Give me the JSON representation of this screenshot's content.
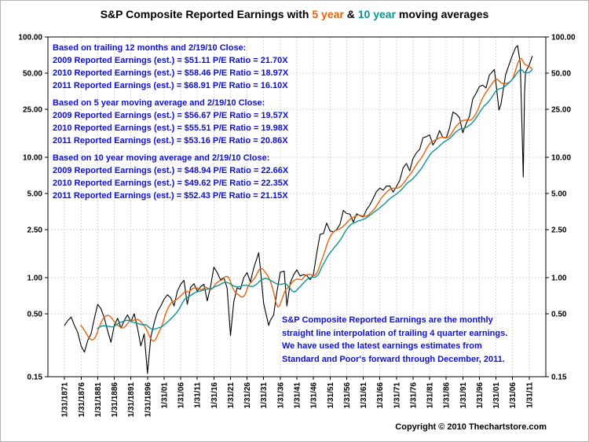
{
  "title": {
    "prefix": "S&P Composite Reported Earnings with ",
    "five_year": "5 year",
    "amp": " & ",
    "ten_year": "10 year",
    "suffix": " moving averages"
  },
  "colors": {
    "earnings": "#000000",
    "ma5": "#e8620d",
    "ma10": "#0d9494",
    "annotation_blue": "#0f10d0",
    "grid": "#c9c9c9",
    "axis": "#000000"
  },
  "annotations": {
    "trailing": {
      "header": "Based on trailing 12 months and 2/19/10 Close:",
      "lines": [
        "2009 Reported Earnings (est.) = $51.11 P/E Ratio = 21.70X",
        "2010 Reported Earnings (est.) = $58.46 P/E Ratio = 18.97X",
        "2011 Reported Earnings (est.) = $68.91 P/E Ratio = 16.10X"
      ]
    },
    "ma5": {
      "header": "Based on 5 year moving average and 2/19/10 Close:",
      "lines": [
        "2009 Reported Earnings (est.) = $56.67 P/E Ratio = 19.57X",
        "2010 Reported Earnings (est.) = $55.51 P/E Ratio = 19.98X",
        "2011 Reported Earnings (est.) = $53.16 P/E Ratio = 20.86X"
      ]
    },
    "ma10": {
      "header": "Based on 10 year moving average and 2/19/10 Close:",
      "lines": [
        "2009 Reported Earnings (est.) = $48.94 P/E Ratio = 22.66X",
        "2010 Reported Earnings (est.) = $49.62 P/E Ratio = 22.35X",
        "2011 Reported Earnings (est.) = $52.43 P/E Ratio = 21.15X"
      ]
    },
    "note": {
      "lines": [
        "S&P Composite Reported Earnings are the monthly",
        "straight line interpolation of trailing 4 quarter earnings.",
        "We have used the latest earnings estimates from",
        "Standard and Poor's forward through December, 2011."
      ]
    }
  },
  "copyright": "Copyright © 2010 Thechartstore.com",
  "chart_data": {
    "type": "line",
    "yscale": "log",
    "ylim": [
      0.15,
      100
    ],
    "xlim_years": [
      1866,
      2016
    ],
    "grid": true,
    "legend": "in-title",
    "y_ticks": [
      100,
      50,
      25,
      10,
      5,
      2.5,
      1,
      0.5,
      0.15
    ],
    "y_tick_labels": [
      "100.00",
      "50.00",
      "25.00",
      "10.00",
      "5.00",
      "2.50",
      "1.00",
      "0.50",
      "0.15"
    ],
    "x_tick_years": [
      1871,
      1876,
      1881,
      1886,
      1891,
      1896,
      1901,
      1906,
      1911,
      1916,
      1921,
      1926,
      1931,
      1936,
      1941,
      1946,
      1951,
      1956,
      1961,
      1966,
      1971,
      1976,
      1981,
      1986,
      1991,
      1996,
      2001,
      2006,
      2011
    ],
    "x_tick_labels": [
      "1/31/1871",
      "1/31/1876",
      "1/31/1881",
      "1/31/1886",
      "1/31/1891",
      "1/31/1896",
      "1/31/01",
      "1/31/06",
      "1/31/11",
      "1/31/16",
      "1/31/21",
      "1/31/26",
      "1/31/31",
      "1/31/36",
      "1/31/41",
      "1/31/46",
      "1/31/51",
      "1/31/56",
      "1/31/61",
      "1/31/66",
      "1/31/71",
      "1/31/76",
      "1/31/81",
      "1/31/86",
      "1/31/91",
      "1/31/96",
      "1/31/01",
      "1/31/06",
      "1/31/11"
    ],
    "series": [
      {
        "name": "S&P Composite Reported Earnings",
        "color_key": "earnings",
        "points": [
          [
            1871,
            0.4
          ],
          [
            1872,
            0.44
          ],
          [
            1873,
            0.47
          ],
          [
            1874,
            0.4
          ],
          [
            1875,
            0.35
          ],
          [
            1876,
            0.27
          ],
          [
            1877,
            0.24
          ],
          [
            1878,
            0.3
          ],
          [
            1879,
            0.34
          ],
          [
            1880,
            0.46
          ],
          [
            1881,
            0.6
          ],
          [
            1882,
            0.55
          ],
          [
            1883,
            0.46
          ],
          [
            1884,
            0.36
          ],
          [
            1885,
            0.29
          ],
          [
            1886,
            0.4
          ],
          [
            1887,
            0.46
          ],
          [
            1888,
            0.38
          ],
          [
            1889,
            0.44
          ],
          [
            1890,
            0.49
          ],
          [
            1891,
            0.43
          ],
          [
            1892,
            0.5
          ],
          [
            1893,
            0.38
          ],
          [
            1894,
            0.27
          ],
          [
            1895,
            0.34
          ],
          [
            1896,
            0.16
          ],
          [
            1897,
            0.32
          ],
          [
            1898,
            0.42
          ],
          [
            1899,
            0.52
          ],
          [
            1900,
            0.58
          ],
          [
            1901,
            0.66
          ],
          [
            1902,
            0.72
          ],
          [
            1903,
            0.68
          ],
          [
            1904,
            0.58
          ],
          [
            1905,
            0.77
          ],
          [
            1906,
            0.88
          ],
          [
            1907,
            0.95
          ],
          [
            1908,
            0.6
          ],
          [
            1909,
            0.83
          ],
          [
            1910,
            0.89
          ],
          [
            1911,
            0.77
          ],
          [
            1912,
            0.84
          ],
          [
            1913,
            0.88
          ],
          [
            1914,
            0.64
          ],
          [
            1915,
            0.84
          ],
          [
            1916,
            1.22
          ],
          [
            1917,
            1.1
          ],
          [
            1918,
            0.96
          ],
          [
            1919,
            1.0
          ],
          [
            1920,
            0.82
          ],
          [
            1921,
            0.33
          ],
          [
            1922,
            0.63
          ],
          [
            1923,
            0.82
          ],
          [
            1924,
            0.8
          ],
          [
            1925,
            1.0
          ],
          [
            1926,
            1.1
          ],
          [
            1927,
            0.92
          ],
          [
            1928,
            1.2
          ],
          [
            1929.5,
            1.61
          ],
          [
            1930,
            1.2
          ],
          [
            1931,
            0.61
          ],
          [
            1932.5,
            0.4
          ],
          [
            1933,
            0.44
          ],
          [
            1934,
            0.49
          ],
          [
            1935,
            0.76
          ],
          [
            1936,
            1.11
          ],
          [
            1937.2,
            1.13
          ],
          [
            1938,
            0.58
          ],
          [
            1939,
            0.9
          ],
          [
            1940,
            1.05
          ],
          [
            1941,
            1.16
          ],
          [
            1942,
            1.03
          ],
          [
            1943,
            1.06
          ],
          [
            1944,
            1.04
          ],
          [
            1945,
            0.96
          ],
          [
            1946,
            1.06
          ],
          [
            1947,
            1.61
          ],
          [
            1948,
            2.29
          ],
          [
            1949,
            2.32
          ],
          [
            1950,
            2.84
          ],
          [
            1951,
            2.44
          ],
          [
            1952,
            2.4
          ],
          [
            1953,
            2.51
          ],
          [
            1954,
            2.77
          ],
          [
            1955,
            3.62
          ],
          [
            1956,
            3.41
          ],
          [
            1957,
            3.37
          ],
          [
            1958,
            2.89
          ],
          [
            1959,
            3.39
          ],
          [
            1960,
            3.27
          ],
          [
            1961,
            3.19
          ],
          [
            1962,
            3.67
          ],
          [
            1963,
            4.02
          ],
          [
            1964,
            4.55
          ],
          [
            1965,
            5.19
          ],
          [
            1966,
            5.55
          ],
          [
            1967,
            5.33
          ],
          [
            1968,
            5.76
          ],
          [
            1969,
            5.78
          ],
          [
            1970,
            5.13
          ],
          [
            1971,
            5.7
          ],
          [
            1972,
            6.42
          ],
          [
            1973,
            8.16
          ],
          [
            1974,
            8.89
          ],
          [
            1975,
            7.71
          ],
          [
            1976,
            9.75
          ],
          [
            1977,
            10.87
          ],
          [
            1978,
            11.64
          ],
          [
            1979,
            14.55
          ],
          [
            1980,
            14.82
          ],
          [
            1981,
            15.36
          ],
          [
            1982,
            12.64
          ],
          [
            1983,
            14.03
          ],
          [
            1984,
            16.64
          ],
          [
            1985,
            14.61
          ],
          [
            1986,
            14.48
          ],
          [
            1987,
            17.5
          ],
          [
            1988,
            23.75
          ],
          [
            1989,
            22.87
          ],
          [
            1990,
            21.34
          ],
          [
            1991,
            15.97
          ],
          [
            1992,
            19.09
          ],
          [
            1993,
            21.89
          ],
          [
            1994,
            30.6
          ],
          [
            1995,
            33.96
          ],
          [
            1996,
            38.73
          ],
          [
            1997,
            39.72
          ],
          [
            1998,
            37.71
          ],
          [
            1999,
            48.17
          ],
          [
            2000.5,
            53.7
          ],
          [
            2001.9,
            24.69
          ],
          [
            2002.5,
            27.59
          ],
          [
            2003.9,
            48.74
          ],
          [
            2004.9,
            58.55
          ],
          [
            2005.9,
            69.93
          ],
          [
            2006.9,
            81.51
          ],
          [
            2007.5,
            84.92
          ],
          [
            2008.3,
            60.0
          ],
          [
            2008.9,
            14.88
          ],
          [
            2009.2,
            6.86
          ],
          [
            2009.6,
            34.0
          ],
          [
            2009.9,
            50.97
          ],
          [
            2010.5,
            55.0
          ],
          [
            2011.0,
            58.46
          ],
          [
            2011.9,
            68.91
          ]
        ]
      },
      {
        "name": "5 year moving average",
        "color_key": "ma5",
        "derived_from": "S&P Composite Reported Earnings",
        "window_years": 5
      },
      {
        "name": "10 year moving average",
        "color_key": "ma10",
        "derived_from": "S&P Composite Reported Earnings",
        "window_years": 10
      }
    ]
  }
}
